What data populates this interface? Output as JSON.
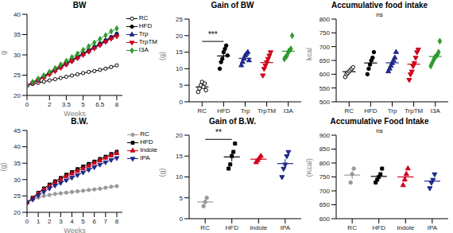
{
  "chart_data": [
    {
      "type": "line",
      "title": "BW",
      "x_label": "Weeks",
      "y_label": "g",
      "x": [
        0,
        0.5,
        1,
        1.5,
        2,
        2.5,
        3,
        3.5,
        4,
        4.5,
        5,
        5.5,
        6,
        6.5,
        7,
        7.5,
        8
      ],
      "xlim": [
        0,
        8.5
      ],
      "xticks": [
        0,
        2,
        3.5,
        5,
        6.5,
        8
      ],
      "ylim": [
        20,
        40
      ],
      "yticks": [
        20,
        25,
        30,
        35,
        40
      ],
      "legend": "right",
      "series": [
        {
          "name": "RC",
          "color": "#000000",
          "marker": "circle_open",
          "values": [
            22.5,
            22.8,
            23.1,
            23.4,
            23.7,
            24.0,
            24.3,
            24.6,
            24.9,
            25.2,
            25.5,
            25.8,
            26.0,
            26.3,
            26.6,
            27.0,
            27.4
          ]
        },
        {
          "name": "HFD",
          "color": "#000000",
          "marker": "circle",
          "values": [
            22.5,
            23.2,
            24.0,
            24.8,
            25.6,
            26.4,
            27.2,
            28.0,
            28.8,
            29.6,
            30.4,
            31.2,
            32.0,
            32.8,
            33.6,
            34.4,
            35.2
          ]
        },
        {
          "name": "Trp",
          "color": "#1f2a8a",
          "marker": "triangle",
          "values": [
            22.5,
            23.1,
            23.8,
            24.6,
            25.4,
            26.2,
            27.0,
            27.8,
            28.6,
            29.4,
            30.2,
            31.0,
            31.8,
            32.6,
            33.4,
            34.2,
            35.0
          ]
        },
        {
          "name": "TrpTM",
          "color": "#d0021b",
          "marker": "triangle_down",
          "values": [
            22.5,
            23.0,
            23.7,
            24.4,
            25.2,
            26.0,
            26.8,
            27.6,
            28.4,
            29.2,
            30.0,
            30.8,
            31.6,
            32.4,
            33.2,
            34.0,
            34.6
          ]
        },
        {
          "name": "I3A",
          "color": "#2e9a2e",
          "marker": "diamond",
          "values": [
            22.5,
            23.3,
            24.1,
            24.9,
            25.8,
            26.7,
            27.6,
            28.5,
            29.4,
            30.3,
            31.2,
            32.1,
            33.0,
            33.9,
            34.8,
            35.8,
            36.5
          ]
        }
      ]
    },
    {
      "type": "scatter",
      "title": "Gain of BW",
      "y_label": "(g)",
      "ylim": [
        0,
        25
      ],
      "yticks": [
        0,
        5,
        10,
        15,
        20,
        25
      ],
      "annotations": [
        {
          "text": "***",
          "from": "RC",
          "to": "HFD"
        }
      ],
      "groups": [
        {
          "name": "RC",
          "color": "#000000",
          "marker": "circle_open",
          "values": [
            3,
            4,
            5,
            6,
            4.5,
            5.5,
            3.5
          ]
        },
        {
          "name": "HFD",
          "color": "#000000",
          "marker": "circle",
          "values": [
            10,
            12,
            13,
            15,
            16,
            17,
            14
          ]
        },
        {
          "name": "Trp",
          "color": "#1f2a8a",
          "marker": "triangle",
          "values": [
            11,
            12,
            13,
            14,
            14.5,
            15,
            12.5
          ]
        },
        {
          "name": "TrpTM",
          "color": "#d0021b",
          "marker": "triangle_down",
          "values": [
            8,
            10,
            11,
            12,
            13,
            14,
            15
          ]
        },
        {
          "name": "I3A",
          "color": "#2e9a2e",
          "marker": "diamond",
          "values": [
            13,
            13.5,
            14,
            15,
            15.5,
            16,
            20
          ]
        }
      ]
    },
    {
      "type": "scatter",
      "title": "Accumulative food intake",
      "y_label": "kcal",
      "ylim": [
        500,
        800
      ],
      "yticks": [
        500,
        550,
        600,
        650,
        700,
        750,
        800
      ],
      "annotations": [
        {
          "text": "ns"
        }
      ],
      "groups": [
        {
          "name": "RC",
          "color": "#000000",
          "marker": "circle_open",
          "values": [
            590,
            600,
            605,
            610,
            615,
            620,
            625
          ]
        },
        {
          "name": "HFD",
          "color": "#000000",
          "marker": "circle",
          "values": [
            600,
            620,
            635,
            650,
            660,
            680
          ]
        },
        {
          "name": "Trp",
          "color": "#1f2a8a",
          "marker": "triangle",
          "values": [
            610,
            620,
            630,
            640,
            650,
            660,
            680
          ]
        },
        {
          "name": "TrpTM",
          "color": "#d0021b",
          "marker": "triangle_down",
          "values": [
            580,
            600,
            610,
            630,
            640,
            660,
            680,
            690
          ]
        },
        {
          "name": "I3A",
          "color": "#2e9a2e",
          "marker": "diamond",
          "values": [
            630,
            640,
            650,
            660,
            665,
            670,
            680,
            720
          ]
        }
      ]
    },
    {
      "type": "line",
      "title": "B.W.",
      "x_label": "Weeks",
      "y_label": "(g)",
      "x": [
        0,
        0.5,
        1,
        1.5,
        2,
        2.5,
        3,
        3.5,
        4,
        4.5,
        5,
        5.5,
        6,
        6.5,
        7,
        7.5,
        8
      ],
      "xlim": [
        0,
        8.5
      ],
      "xticks": [
        0,
        1,
        2,
        3,
        4,
        5,
        6,
        7,
        8
      ],
      "ylim": [
        20,
        45
      ],
      "yticks": [
        20,
        25,
        30,
        35,
        40,
        45
      ],
      "legend": "right",
      "series": [
        {
          "name": "RC",
          "color": "#999999",
          "marker": "circle",
          "values": [
            23,
            23.8,
            24.5,
            25,
            25.3,
            25.6,
            25.8,
            26,
            26.2,
            26.4,
            26.6,
            26.8,
            27,
            27.2,
            27.5,
            27.8,
            28
          ]
        },
        {
          "name": "HFD",
          "color": "#000000",
          "marker": "square",
          "values": [
            23,
            24.5,
            26,
            27.3,
            28.5,
            29.5,
            30.5,
            31.5,
            32.3,
            33.2,
            34,
            34.8,
            35.5,
            36.3,
            37,
            37.8,
            38.5
          ]
        },
        {
          "name": "Indole",
          "color": "#d0021b",
          "marker": "triangle",
          "values": [
            23,
            24.3,
            25.7,
            27,
            28,
            29,
            30,
            31,
            31.8,
            32.6,
            33.4,
            34.2,
            35,
            35.8,
            36.6,
            37.3,
            38
          ]
        },
        {
          "name": "IPA",
          "color": "#1f2a8a",
          "marker": "triangle_down",
          "values": [
            23,
            24,
            25.2,
            26.3,
            27.3,
            28.2,
            29,
            29.8,
            30.6,
            31.4,
            32.2,
            33,
            33.8,
            34.6,
            35.3,
            36,
            36.6
          ]
        }
      ]
    },
    {
      "type": "scatter",
      "title": "Gain of B.W.",
      "y_label": "(g)",
      "ylim": [
        0,
        20
      ],
      "yticks": [
        0,
        5,
        10,
        15,
        20
      ],
      "annotations": [
        {
          "text": "**",
          "from": "RC",
          "to": "HFD"
        }
      ],
      "groups": [
        {
          "name": "RC",
          "color": "#999999",
          "marker": "circle",
          "values": [
            3,
            4,
            5
          ]
        },
        {
          "name": "HFD",
          "color": "#000000",
          "marker": "square",
          "values": [
            12,
            13,
            15,
            16,
            18
          ]
        },
        {
          "name": "Indole",
          "color": "#d0021b",
          "marker": "triangle",
          "values": [
            13.5,
            14,
            14.5,
            15
          ]
        },
        {
          "name": "IPA",
          "color": "#1f2a8a",
          "marker": "triangle_down",
          "values": [
            10,
            12,
            13,
            15,
            16
          ]
        }
      ]
    },
    {
      "type": "scatter",
      "title": "Accumulative Food Intake",
      "y_label": "(Kcal)",
      "ylim": [
        600,
        900
      ],
      "yticks": [
        600,
        650,
        700,
        750,
        800,
        850,
        900
      ],
      "annotations": [
        {
          "text": "ns"
        }
      ],
      "groups": [
        {
          "name": "RC",
          "color": "#999999",
          "marker": "circle",
          "values": [
            730,
            760,
            780
          ]
        },
        {
          "name": "HFD",
          "color": "#000000",
          "marker": "square",
          "values": [
            730,
            740,
            750,
            760,
            780
          ]
        },
        {
          "name": "Indole",
          "color": "#d0021b",
          "marker": "triangle",
          "values": [
            720,
            740,
            760,
            780
          ]
        },
        {
          "name": "IPA",
          "color": "#1f2a8a",
          "marker": "triangle_down",
          "values": [
            710,
            730,
            740,
            760
          ]
        }
      ]
    }
  ]
}
